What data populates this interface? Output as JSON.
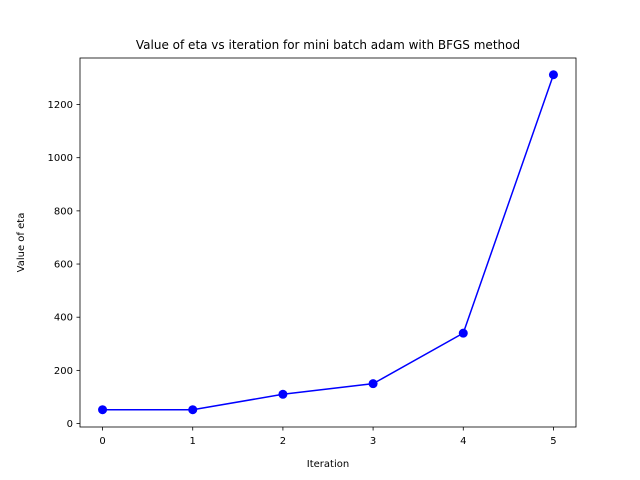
{
  "chart_data": {
    "type": "line",
    "title": "Value of eta vs iteration for mini batch adam with BFGS method",
    "xlabel": "Iteration",
    "ylabel": "Value of eta",
    "x": [
      0,
      1,
      2,
      3,
      4,
      5
    ],
    "series": [
      {
        "values": [
          52,
          52,
          110,
          150,
          340,
          1312
        ],
        "color": "#0000ff",
        "marker": "circle"
      }
    ],
    "xlim": [
      -0.25,
      5.25
    ],
    "ylim": [
      -13,
      1375
    ],
    "xticks": [
      0,
      1,
      2,
      3,
      4,
      5
    ],
    "xtick_labels": [
      "0",
      "1",
      "2",
      "3",
      "4",
      "5"
    ],
    "yticks": [
      0,
      200,
      400,
      600,
      800,
      1000,
      1200
    ],
    "ytick_labels": [
      "0",
      "200",
      "400",
      "600",
      "800",
      "1000",
      "1200"
    ],
    "grid": false,
    "legend": "none"
  }
}
